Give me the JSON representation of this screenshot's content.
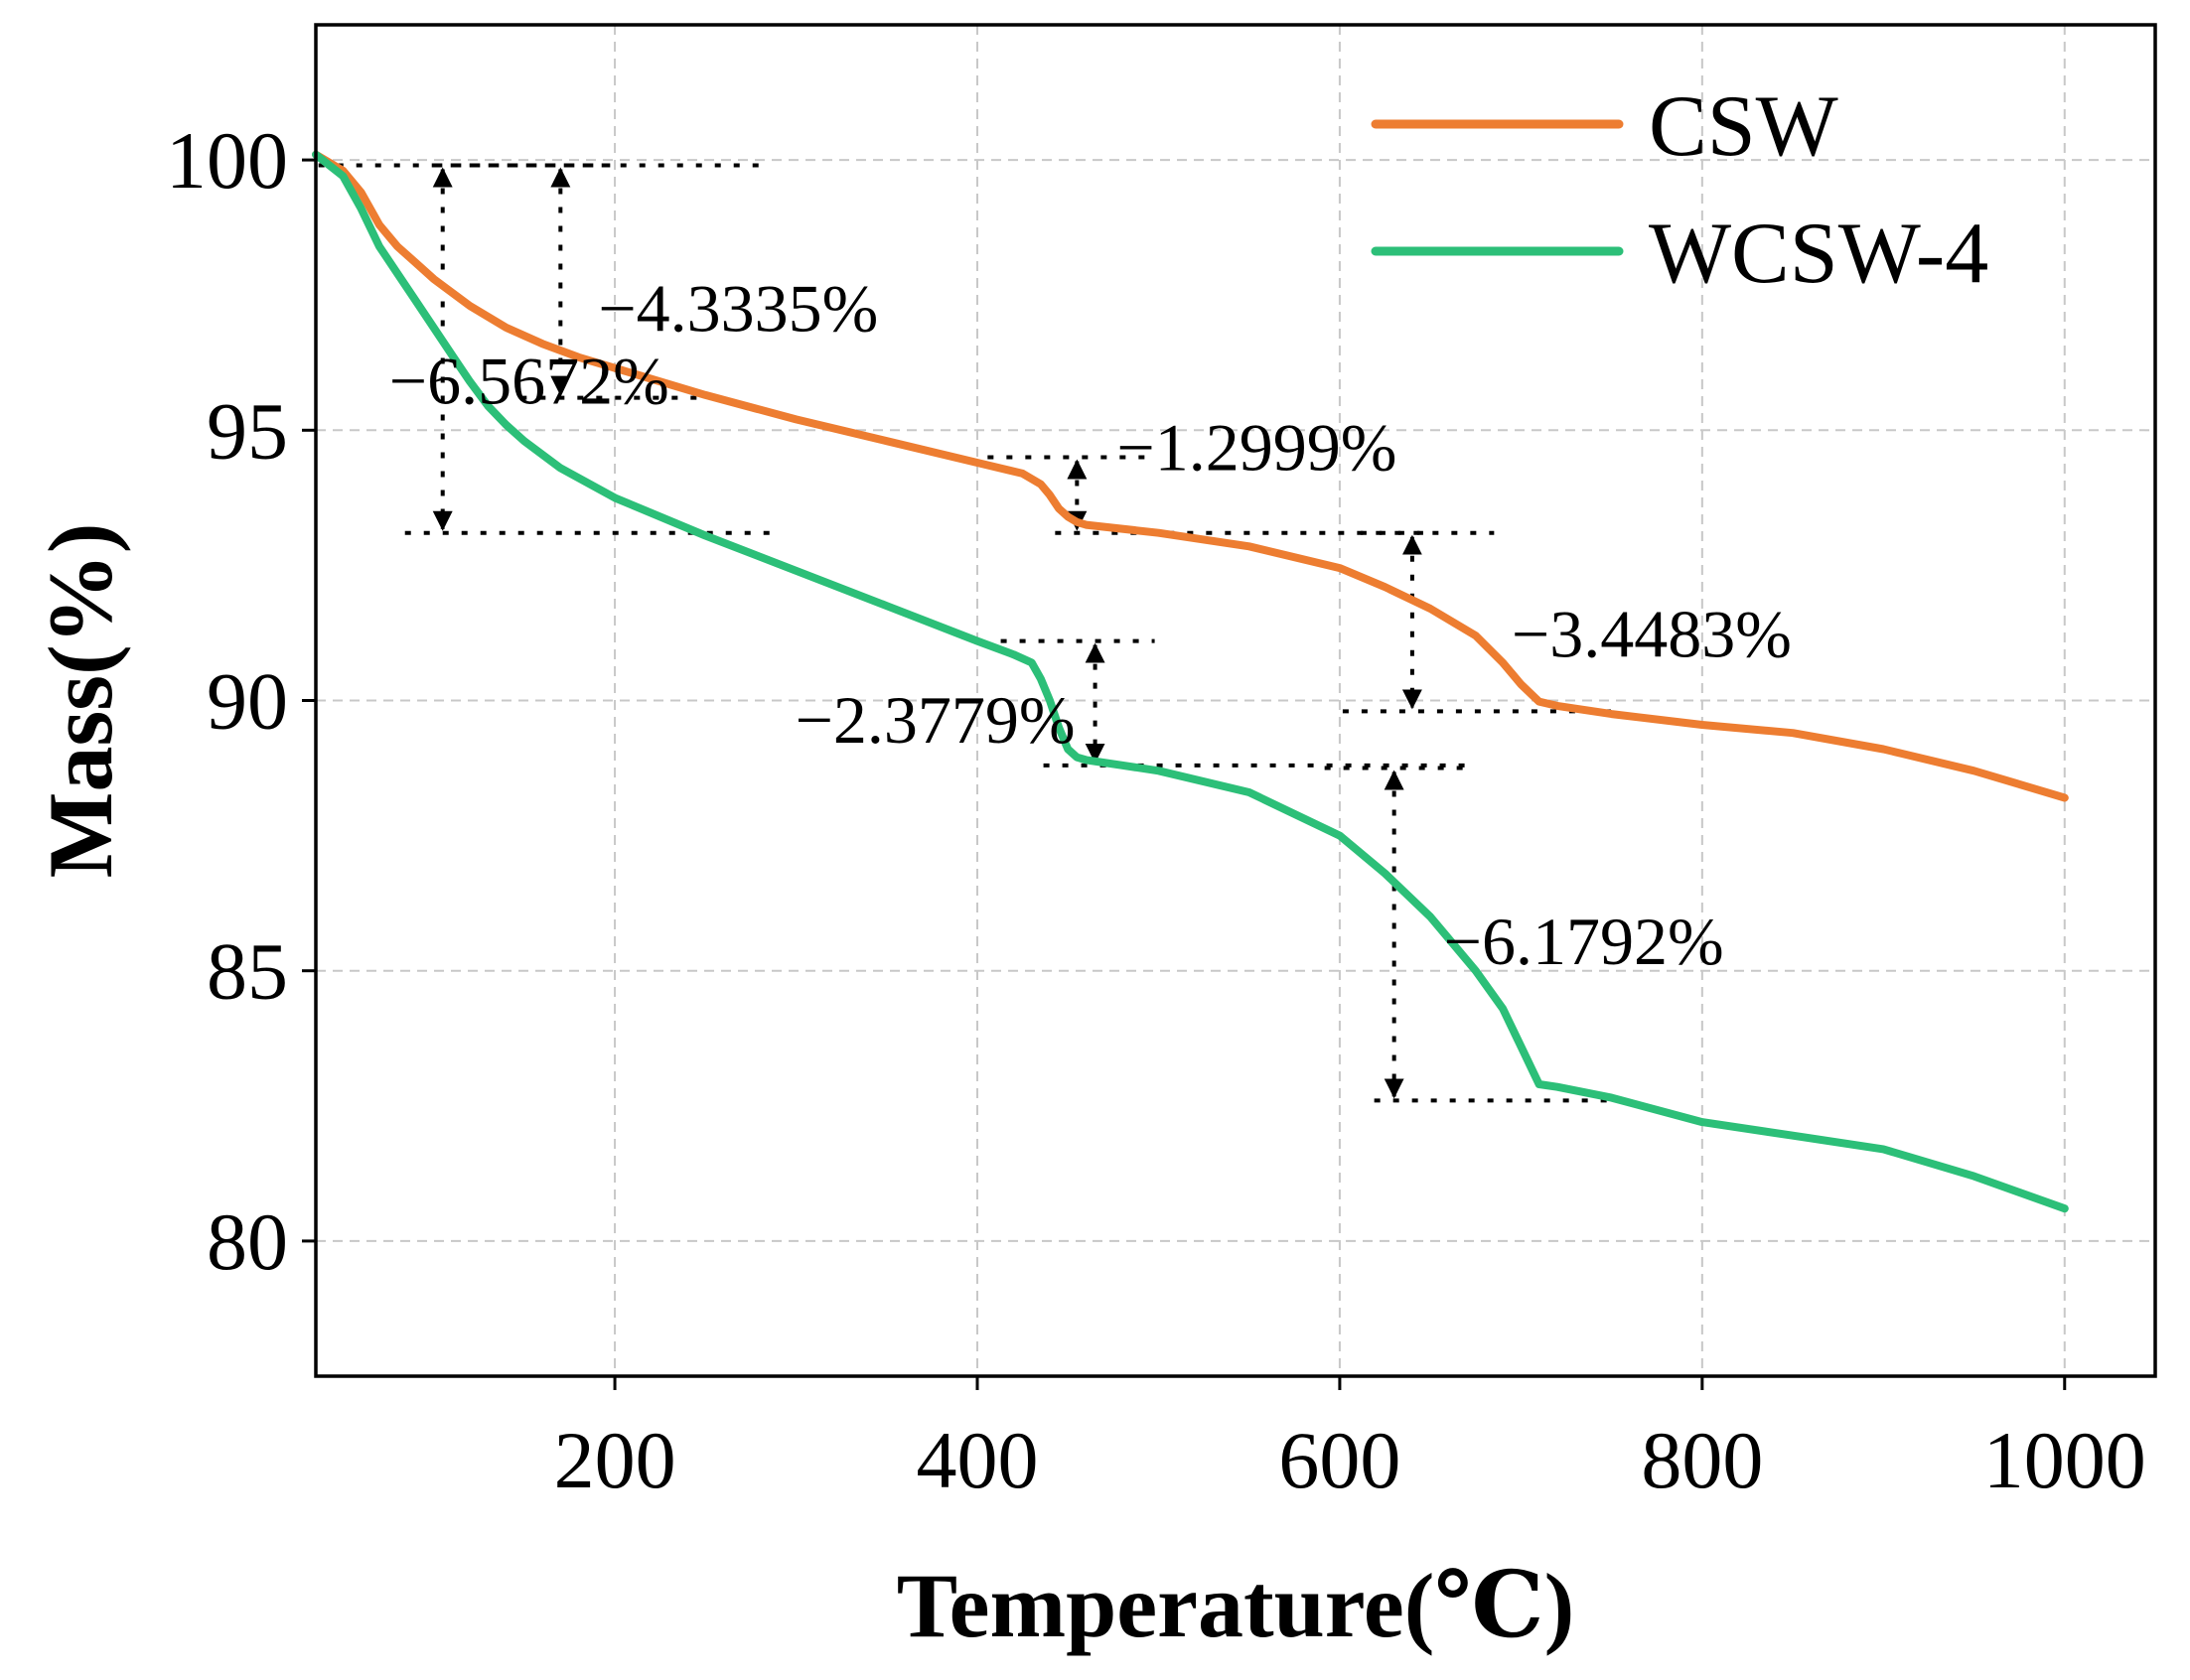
{
  "chart_data": {
    "type": "line",
    "title": "",
    "xlabel": "Temperature(℃)",
    "ylabel": "Mass(%)",
    "xlim": [
      35,
      1050
    ],
    "ylim": [
      77.5,
      102.5
    ],
    "xticks": [
      200,
      400,
      600,
      800,
      1000
    ],
    "yticks": [
      80,
      85,
      90,
      95,
      100
    ],
    "grid": true,
    "legend_position": "top-right",
    "series": [
      {
        "name": "CSW",
        "color": "#ed7d31",
        "x": [
          35,
          50,
          60,
          70,
          80,
          90,
          100,
          120,
          140,
          160,
          180,
          200,
          250,
          300,
          350,
          400,
          425,
          435,
          440,
          445,
          450,
          455,
          460,
          500,
          550,
          600,
          625,
          650,
          675,
          690,
          700,
          710,
          720,
          750,
          800,
          850,
          900,
          950,
          1000
        ],
        "y": [
          100.1,
          99.8,
          99.4,
          98.8,
          98.4,
          98.1,
          97.8,
          97.3,
          96.9,
          96.6,
          96.35,
          96.15,
          95.65,
          95.2,
          94.8,
          94.4,
          94.2,
          94.0,
          93.8,
          93.55,
          93.4,
          93.3,
          93.25,
          93.1,
          92.85,
          92.45,
          92.1,
          91.7,
          91.2,
          90.7,
          90.3,
          89.98,
          89.9,
          89.75,
          89.55,
          89.4,
          89.1,
          88.7,
          88.2
        ]
      },
      {
        "name": "WCSW-4",
        "color": "#2cbf78",
        "x": [
          35,
          50,
          60,
          70,
          80,
          90,
          100,
          110,
          120,
          130,
          140,
          150,
          170,
          200,
          250,
          300,
          350,
          400,
          420,
          430,
          435,
          440,
          445,
          450,
          455,
          460,
          480,
          500,
          550,
          600,
          625,
          650,
          675,
          690,
          700,
          710,
          720,
          750,
          800,
          850,
          900,
          950,
          1000
        ],
        "y": [
          100.1,
          99.7,
          99.1,
          98.4,
          97.9,
          97.4,
          96.9,
          96.4,
          95.9,
          95.45,
          95.1,
          94.8,
          94.3,
          93.75,
          93.05,
          92.4,
          91.75,
          91.1,
          90.85,
          90.7,
          90.4,
          90.0,
          89.5,
          89.1,
          88.95,
          88.9,
          88.8,
          88.7,
          88.3,
          87.5,
          86.8,
          86.0,
          85.0,
          84.3,
          83.6,
          82.9,
          82.85,
          82.65,
          82.2,
          81.95,
          81.7,
          81.2,
          80.6
        ]
      }
    ],
    "annotations": [
      {
        "label": "−4.3335%",
        "series": "CSW",
        "x": 170,
        "from": 99.9,
        "to": 95.6
      },
      {
        "label": "−6.5672%",
        "series": "WCSW-4",
        "x": 105,
        "from": 99.9,
        "to": 93.1
      },
      {
        "label": "−1.2999%",
        "series": "CSW",
        "x": 455,
        "from": 94.5,
        "to": 93.1
      },
      {
        "label": "−2.3779%",
        "series": "WCSW-4",
        "x": 465,
        "from": 91.1,
        "to": 88.8
      },
      {
        "label": "−3.4483%",
        "series": "CSW",
        "x": 640,
        "from": 93.1,
        "to": 89.8
      },
      {
        "label": "−6.1792%",
        "series": "WCSW-4",
        "x": 630,
        "from": 88.75,
        "to": 82.6
      }
    ]
  }
}
